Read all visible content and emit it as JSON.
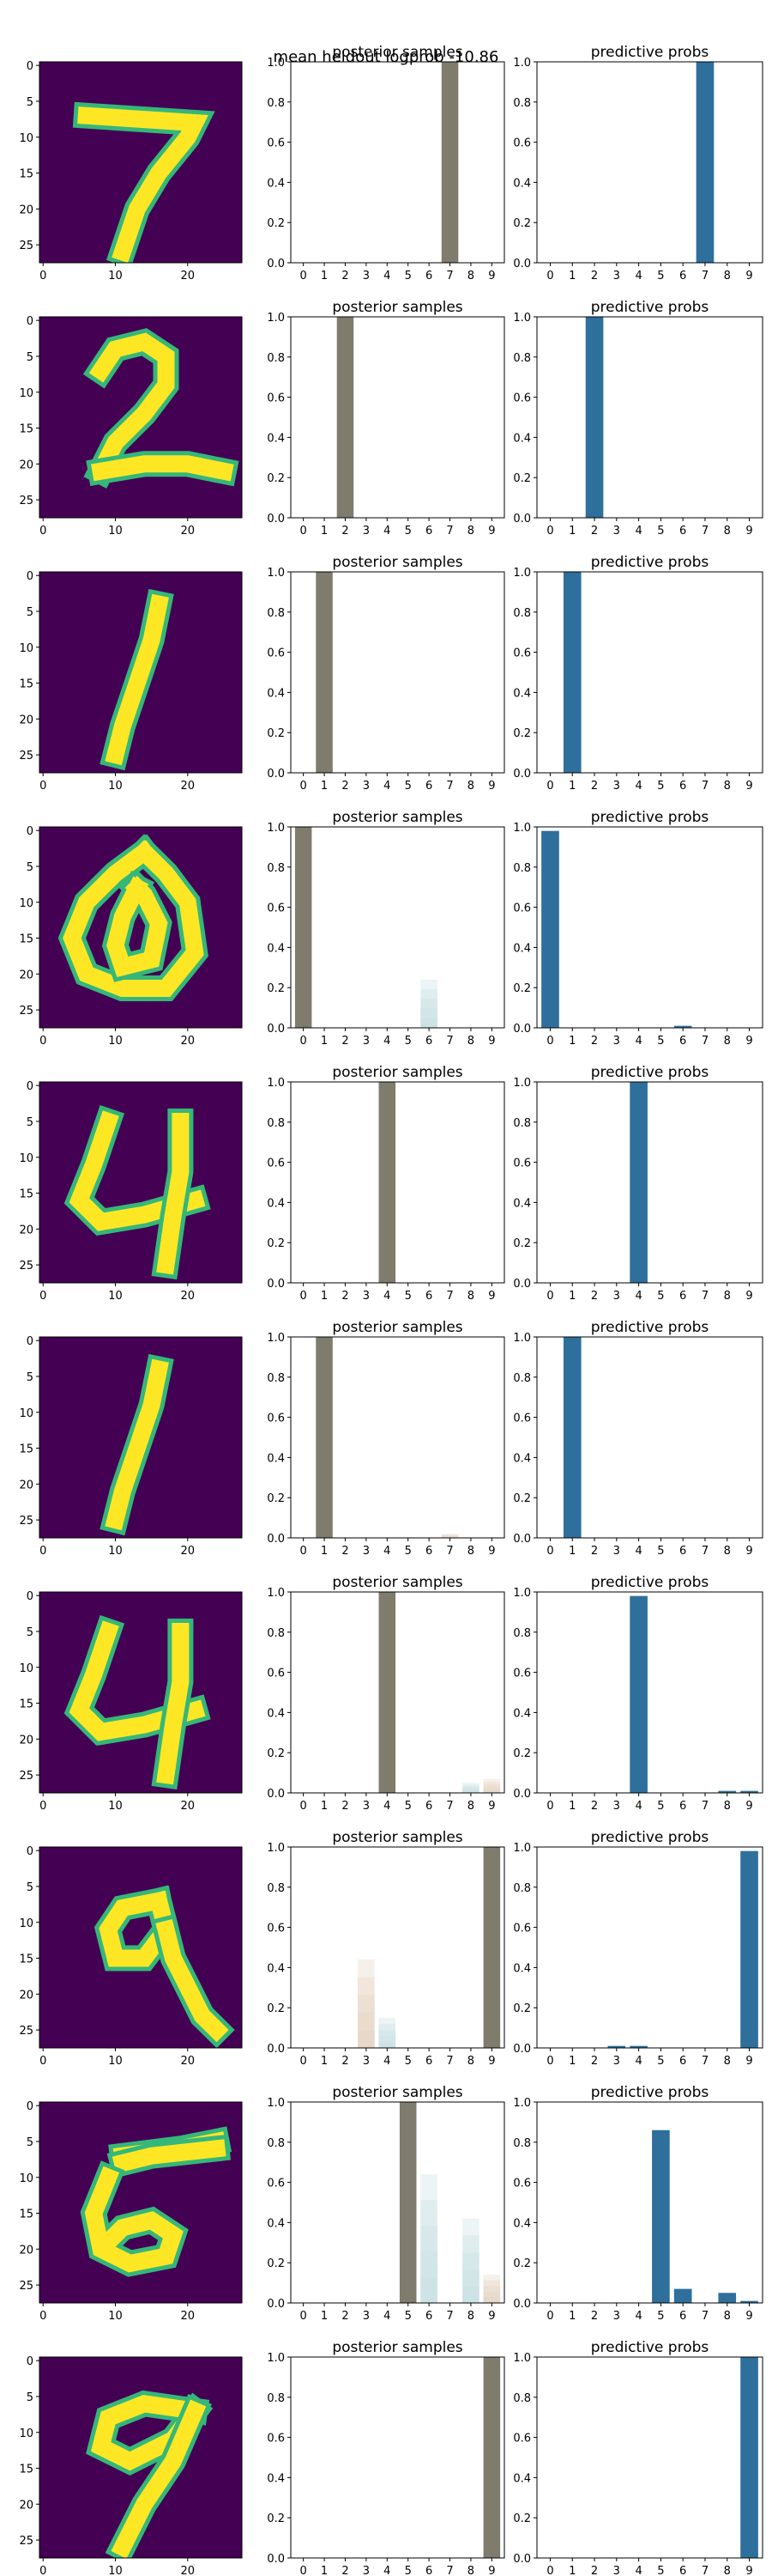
{
  "suptitle": "mean heldout logprob -10.86",
  "subplot_titles": {
    "posterior": "posterior samples",
    "predictive": "predictive probs"
  },
  "colors": {
    "predictive_bar": "#2e6f9c",
    "posterior_fill": "#7f7b6d",
    "digit_background": "#440154",
    "digit_stroke": "#fde725",
    "digit_edge": "#35b779"
  },
  "digit_axis": {
    "yticks": [
      0,
      5,
      10,
      15,
      20,
      25
    ],
    "xticks": [
      0,
      10,
      20
    ],
    "range": [
      0,
      27
    ]
  },
  "bar_axis": {
    "categories": [
      "0",
      "1",
      "2",
      "3",
      "4",
      "5",
      "6",
      "7",
      "8",
      "9"
    ],
    "yticks": [
      "0.0",
      "0.2",
      "0.4",
      "0.6",
      "0.8",
      "1.0"
    ],
    "ylim": [
      0,
      1
    ]
  },
  "chart_data": [
    {
      "type": "bar",
      "row": 1,
      "digit": "7",
      "categories": [
        "0",
        "1",
        "2",
        "3",
        "4",
        "5",
        "6",
        "7",
        "8",
        "9"
      ],
      "predictive": [
        0,
        0,
        0,
        0,
        0,
        0,
        0,
        1.0,
        0,
        0
      ],
      "posterior_shading": [
        0,
        0,
        0,
        0,
        0,
        0,
        0,
        1.0,
        0,
        0
      ],
      "ylim": [
        0,
        1
      ]
    },
    {
      "type": "bar",
      "row": 2,
      "digit": "2",
      "categories": [
        "0",
        "1",
        "2",
        "3",
        "4",
        "5",
        "6",
        "7",
        "8",
        "9"
      ],
      "predictive": [
        0,
        0,
        1.0,
        0,
        0,
        0,
        0,
        0,
        0,
        0
      ],
      "posterior_shading": [
        0,
        0,
        1.0,
        0,
        0,
        0,
        0,
        0,
        0,
        0
      ],
      "ylim": [
        0,
        1
      ]
    },
    {
      "type": "bar",
      "row": 3,
      "digit": "1",
      "categories": [
        "0",
        "1",
        "2",
        "3",
        "4",
        "5",
        "6",
        "7",
        "8",
        "9"
      ],
      "predictive": [
        0,
        1.0,
        0,
        0,
        0,
        0,
        0,
        0,
        0,
        0
      ],
      "posterior_shading": [
        0,
        1.0,
        0,
        0,
        0,
        0,
        0,
        0,
        0,
        0
      ],
      "ylim": [
        0,
        1
      ]
    },
    {
      "type": "bar",
      "row": 4,
      "digit": "0",
      "categories": [
        "0",
        "1",
        "2",
        "3",
        "4",
        "5",
        "6",
        "7",
        "8",
        "9"
      ],
      "predictive": [
        0.98,
        0,
        0,
        0,
        0,
        0,
        0.01,
        0,
        0,
        0
      ],
      "posterior_shading": [
        1.0,
        0,
        0,
        0,
        0,
        0,
        0.24,
        0,
        0,
        0
      ],
      "ylim": [
        0,
        1
      ]
    },
    {
      "type": "bar",
      "row": 5,
      "digit": "4",
      "categories": [
        "0",
        "1",
        "2",
        "3",
        "4",
        "5",
        "6",
        "7",
        "8",
        "9"
      ],
      "predictive": [
        0,
        0,
        0,
        0,
        1.0,
        0,
        0,
        0,
        0,
        0
      ],
      "posterior_shading": [
        0,
        0,
        0,
        0,
        1.0,
        0,
        0,
        0,
        0,
        0
      ],
      "ylim": [
        0,
        1
      ]
    },
    {
      "type": "bar",
      "row": 6,
      "digit": "1",
      "categories": [
        "0",
        "1",
        "2",
        "3",
        "4",
        "5",
        "6",
        "7",
        "8",
        "9"
      ],
      "predictive": [
        0,
        1.0,
        0,
        0,
        0,
        0,
        0,
        0,
        0,
        0
      ],
      "posterior_shading": [
        0,
        1.0,
        0,
        0,
        0,
        0,
        0,
        0.02,
        0,
        0
      ],
      "ylim": [
        0,
        1
      ]
    },
    {
      "type": "bar",
      "row": 7,
      "digit": "4",
      "categories": [
        "0",
        "1",
        "2",
        "3",
        "4",
        "5",
        "6",
        "7",
        "8",
        "9"
      ],
      "predictive": [
        0,
        0,
        0,
        0,
        0.98,
        0,
        0,
        0,
        0.01,
        0.01
      ],
      "posterior_shading": [
        0,
        0,
        0,
        0,
        1.0,
        0,
        0,
        0,
        0.05,
        0.07
      ],
      "ylim": [
        0,
        1
      ]
    },
    {
      "type": "bar",
      "row": 8,
      "digit": "9",
      "categories": [
        "0",
        "1",
        "2",
        "3",
        "4",
        "5",
        "6",
        "7",
        "8",
        "9"
      ],
      "predictive": [
        0,
        0,
        0,
        0.01,
        0.01,
        0,
        0,
        0,
        0,
        0.98
      ],
      "posterior_shading": [
        0,
        0,
        0,
        0.44,
        0.15,
        0,
        0,
        0,
        0,
        1.0
      ],
      "ylim": [
        0,
        1
      ]
    },
    {
      "type": "bar",
      "row": 9,
      "digit": "6",
      "categories": [
        "0",
        "1",
        "2",
        "3",
        "4",
        "5",
        "6",
        "7",
        "8",
        "9"
      ],
      "predictive": [
        0,
        0,
        0,
        0,
        0,
        0.86,
        0.07,
        0,
        0.05,
        0.01
      ],
      "posterior_shading": [
        0,
        0,
        0,
        0,
        0,
        1.0,
        0.64,
        0,
        0.42,
        0.14
      ],
      "ylim": [
        0,
        1
      ]
    },
    {
      "type": "bar",
      "row": 10,
      "digit": "9",
      "categories": [
        "0",
        "1",
        "2",
        "3",
        "4",
        "5",
        "6",
        "7",
        "8",
        "9"
      ],
      "predictive": [
        0,
        0,
        0,
        0,
        0,
        0,
        0,
        0,
        0,
        1.0
      ],
      "posterior_shading": [
        0,
        0,
        0,
        0,
        0,
        0,
        0,
        0,
        0,
        1.0
      ],
      "ylim": [
        0,
        1
      ]
    }
  ]
}
